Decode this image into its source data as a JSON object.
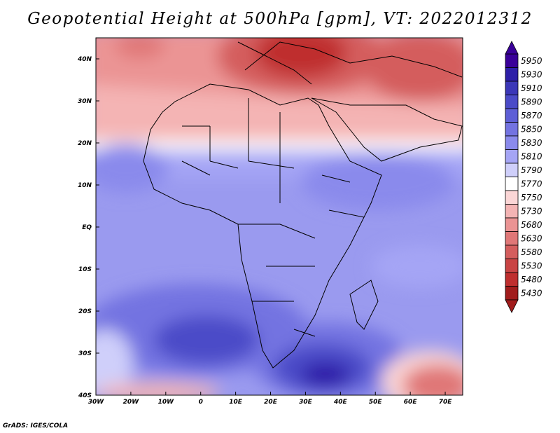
{
  "title": "Geopotential Height at 500hPa [gpm], VT: 2022012312",
  "footer": "GrADS: IGES/COLA",
  "map": {
    "lon_range": [
      -30,
      75
    ],
    "lat_range": [
      -40,
      45
    ],
    "lat_ticks": [
      {
        "value": 40,
        "label": "40N"
      },
      {
        "value": 30,
        "label": "30N"
      },
      {
        "value": 20,
        "label": "20N"
      },
      {
        "value": 10,
        "label": "10N"
      },
      {
        "value": 0,
        "label": "EQ"
      },
      {
        "value": -10,
        "label": "10S"
      },
      {
        "value": -20,
        "label": "20S"
      },
      {
        "value": -30,
        "label": "30S"
      },
      {
        "value": -40,
        "label": "40S"
      }
    ],
    "lon_ticks": [
      {
        "value": -30,
        "label": "30W"
      },
      {
        "value": -20,
        "label": "20W"
      },
      {
        "value": -10,
        "label": "10W"
      },
      {
        "value": 0,
        "label": "0"
      },
      {
        "value": 10,
        "label": "10E"
      },
      {
        "value": 20,
        "label": "20E"
      },
      {
        "value": 30,
        "label": "30E"
      },
      {
        "value": 40,
        "label": "40E"
      },
      {
        "value": 50,
        "label": "50E"
      },
      {
        "value": 60,
        "label": "60E"
      },
      {
        "value": 70,
        "label": "70E"
      }
    ]
  },
  "colorbar": {
    "labels": [
      "5950",
      "5930",
      "5910",
      "5890",
      "5870",
      "5850",
      "5830",
      "5810",
      "5790",
      "5770",
      "5750",
      "5730",
      "5680",
      "5630",
      "5580",
      "5530",
      "5480",
      "5430"
    ],
    "colors": [
      "#3a0099",
      "#2d1fa8",
      "#3b37b8",
      "#4b4bc8",
      "#5e5fd6",
      "#7373e1",
      "#8a8aec",
      "#a5a5f5",
      "#cfcffa",
      "#ffffff",
      "#fbd6d6",
      "#f4b4b4",
      "#eb9494",
      "#e07777",
      "#d45d5d",
      "#c94444",
      "#bf2e2e",
      "#a11c1c"
    ]
  }
}
